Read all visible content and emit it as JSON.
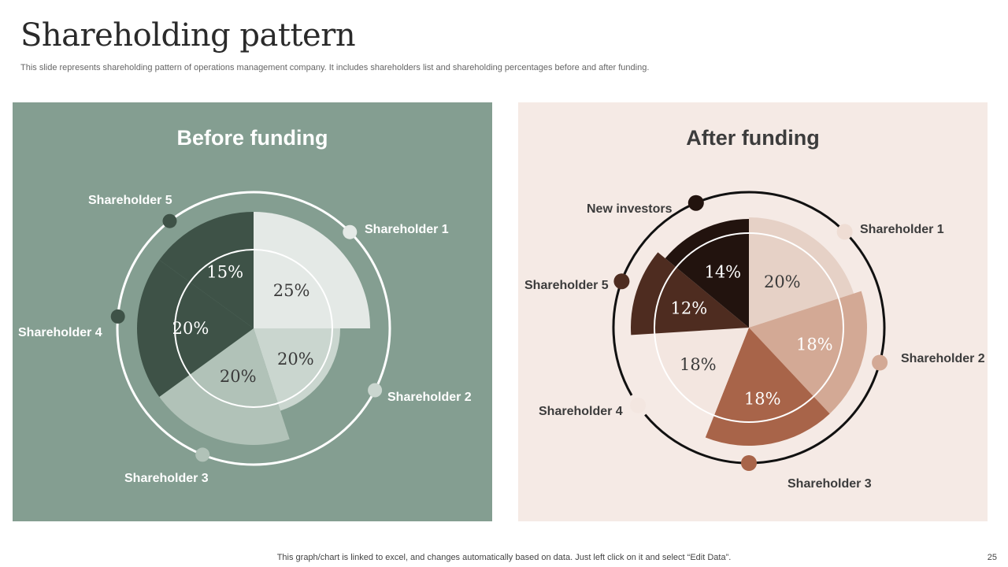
{
  "slide": {
    "title": "Shareholding pattern",
    "subtitle": "This slide represents shareholding pattern of operations management company. It includes shareholders list and shareholding percentages before and after funding.",
    "footer": "This graph/chart is linked to excel,  and changes automatically based on data. Just left click on it and select “Edit Data”.",
    "page_number": "25"
  },
  "chart_data": [
    {
      "type": "pie",
      "title": "Before funding",
      "background": "#849e91",
      "label_color": "#ffffff",
      "slices": [
        {
          "label": "Shareholder 1",
          "value": 25,
          "display": "25%",
          "color": "#e4e9e6",
          "text_color": "#3a3a3a"
        },
        {
          "label": "Shareholder 2",
          "value": 20,
          "display": "20%",
          "color": "#cad6cf",
          "text_color": "#3a3a3a"
        },
        {
          "label": "Shareholder 3",
          "value": 20,
          "display": "20%",
          "color": "#b1c2b8",
          "text_color": "#3a3a3a"
        },
        {
          "label": "Shareholder 4",
          "value": 20,
          "display": "20%",
          "color": "#3e5247",
          "text_color": "#ffffff"
        },
        {
          "label": "Shareholder 5",
          "value": 15,
          "display": "15%",
          "color": "#3e5247",
          "text_color": "#ffffff"
        }
      ]
    },
    {
      "type": "pie",
      "title": "After funding",
      "background": "#f5eae5",
      "label_color": "#3c3c3c",
      "slices": [
        {
          "label": "Shareholder 1",
          "value": 20,
          "display": "20%",
          "color": "#e6d1c6",
          "text_color": "#3a3a3a"
        },
        {
          "label": "Shareholder 2",
          "value": 18,
          "display": "18%",
          "color": "#d3a995",
          "text_color": "#ffffff"
        },
        {
          "label": "Shareholder 3",
          "value": 18,
          "display": "18%",
          "color": "#a86449",
          "text_color": "#ffffff"
        },
        {
          "label": "Shareholder 4",
          "value": 18,
          "display": "18%",
          "color": "#f3e6e0",
          "text_color": "#3a3a3a"
        },
        {
          "label": "Shareholder 5",
          "value": 12,
          "display": "12%",
          "color": "#4e2c20",
          "text_color": "#ffffff"
        },
        {
          "label": "New investors",
          "value": 14,
          "display": "14%",
          "color": "#22130e",
          "text_color": "#ffffff"
        }
      ]
    }
  ]
}
